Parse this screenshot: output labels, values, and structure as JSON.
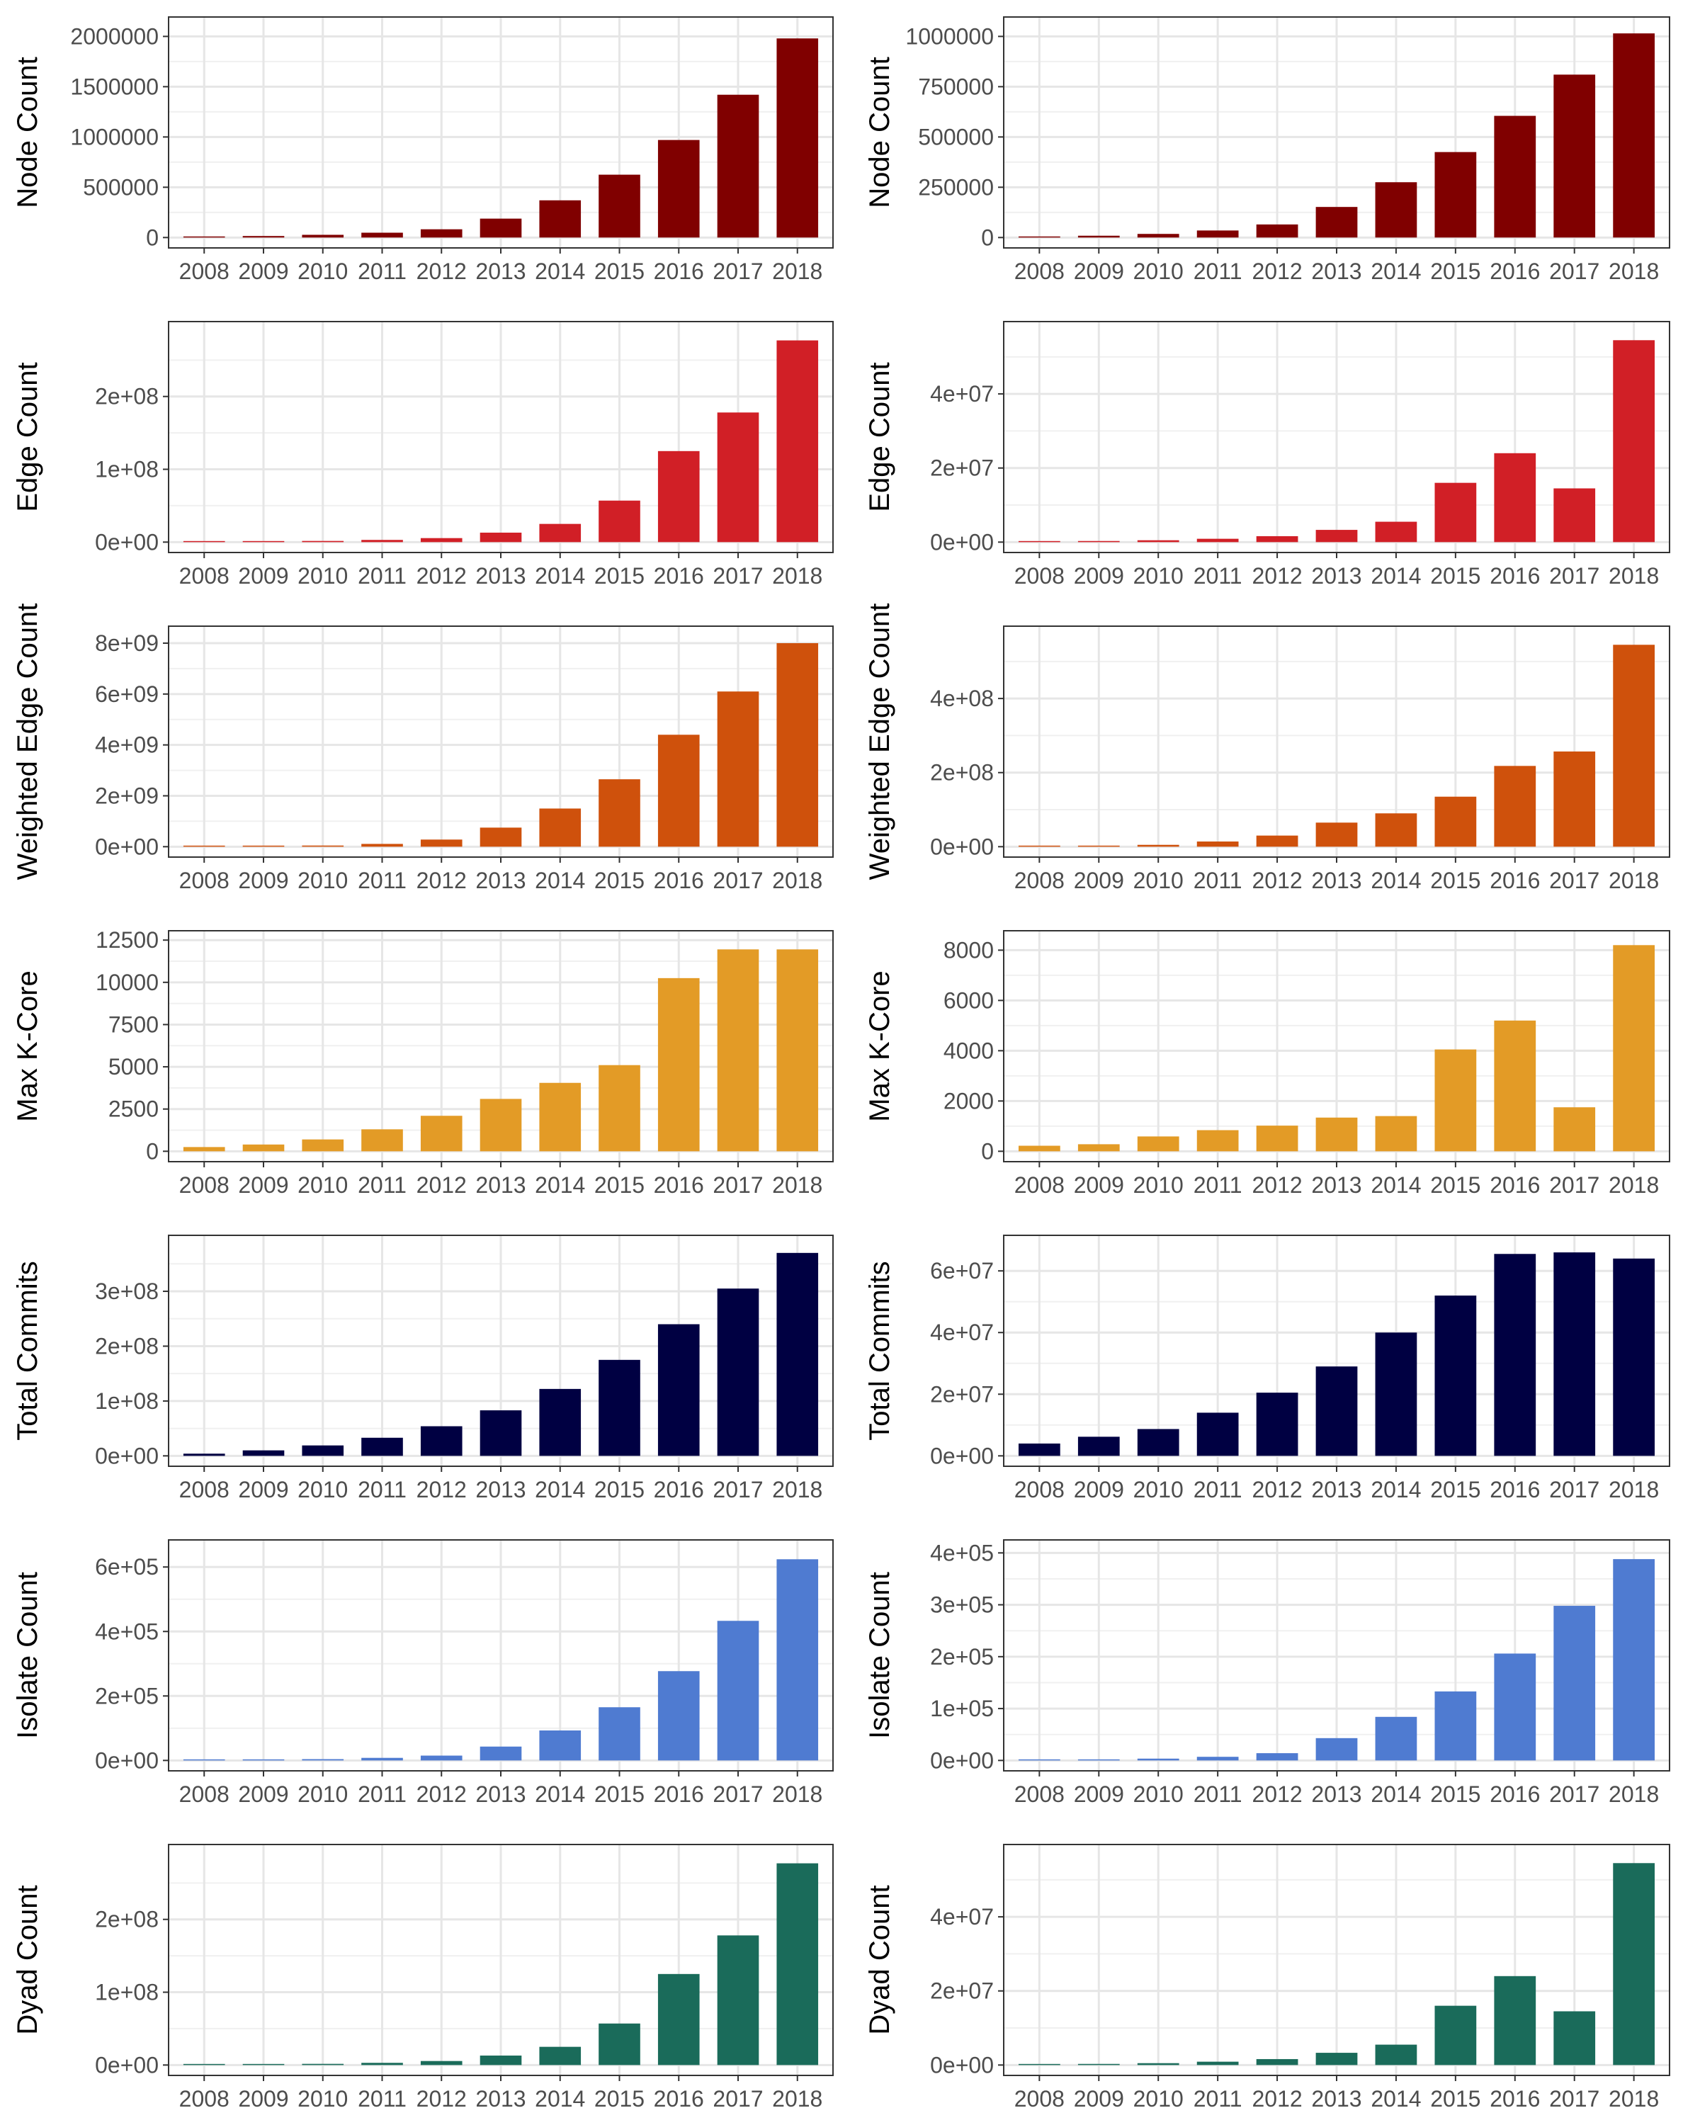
{
  "chart_data": [
    {
      "type": "bar",
      "categories": [
        "2008",
        "2009",
        "2010",
        "2011",
        "2012",
        "2013",
        "2014",
        "2015",
        "2016",
        "2017",
        "2018"
      ],
      "values": [
        8000,
        15000,
        27000,
        48000,
        82000,
        188000,
        370000,
        625000,
        970000,
        1420000,
        1980000
      ],
      "ylabel": "Node Count",
      "ylim": [
        0,
        2100000
      ],
      "y_ticks": [
        0,
        500000,
        1000000,
        1500000,
        2000000
      ],
      "y_tick_labels": [
        "0",
        "500000",
        "1000000",
        "1500000",
        "2000000"
      ],
      "color": "#800000",
      "grid": true
    },
    {
      "type": "bar",
      "categories": [
        "2008",
        "2009",
        "2010",
        "2011",
        "2012",
        "2013",
        "2014",
        "2015",
        "2016",
        "2017",
        "2018"
      ],
      "values": [
        4000,
        9000,
        18000,
        35000,
        65000,
        152000,
        275000,
        425000,
        605000,
        810000,
        1015000
      ],
      "ylabel": "Node Count",
      "ylim": [
        0,
        1050000
      ],
      "y_ticks": [
        0,
        250000,
        500000,
        750000,
        1000000
      ],
      "y_tick_labels": [
        "0",
        "250000",
        "500000",
        "750000",
        "1000000"
      ],
      "color": "#800000",
      "grid": true
    },
    {
      "type": "bar",
      "categories": [
        "2008",
        "2009",
        "2010",
        "2011",
        "2012",
        "2013",
        "2014",
        "2015",
        "2016",
        "2017",
        "2018"
      ],
      "values": [
        200000,
        700000,
        1600000,
        3000000,
        5500000,
        13000000,
        25000000,
        57000000,
        125000000,
        178000000,
        277000000
      ],
      "ylabel": "Edge Count",
      "ylim": [
        0,
        290000000
      ],
      "y_ticks": [
        0,
        100000000,
        200000000
      ],
      "y_tick_labels": [
        "0e+00",
        "1e+08",
        "2e+08"
      ],
      "color": "#d11f26",
      "grid": true
    },
    {
      "type": "bar",
      "categories": [
        "2008",
        "2009",
        "2010",
        "2011",
        "2012",
        "2013",
        "2014",
        "2015",
        "2016",
        "2017",
        "2018"
      ],
      "values": [
        100000,
        300000,
        500000,
        900000,
        1600000,
        3300000,
        5500000,
        16000000,
        24000000,
        14500000,
        54500000
      ],
      "ylabel": "Edge Count",
      "ylim": [
        0,
        57000000
      ],
      "y_ticks": [
        0,
        20000000,
        40000000
      ],
      "y_tick_labels": [
        "0e+00",
        "2e+07",
        "4e+07"
      ],
      "color": "#d11f26",
      "grid": true
    },
    {
      "type": "bar",
      "categories": [
        "2008",
        "2009",
        "2010",
        "2011",
        "2012",
        "2013",
        "2014",
        "2015",
        "2016",
        "2017",
        "2018"
      ],
      "values": [
        5000000,
        20000000,
        45000000,
        110000000,
        280000000,
        750000000,
        1500000000,
        2650000000,
        4400000000,
        6100000000,
        8000000000
      ],
      "ylabel": "Weighted Edge Count",
      "ylim": [
        0,
        8300000000
      ],
      "y_ticks": [
        0,
        2000000000,
        4000000000,
        6000000000,
        8000000000
      ],
      "y_tick_labels": [
        "0e+00",
        "2e+09",
        "4e+09",
        "6e+09",
        "8e+09"
      ],
      "color": "#cf510c",
      "grid": true
    },
    {
      "type": "bar",
      "categories": [
        "2008",
        "2009",
        "2010",
        "2011",
        "2012",
        "2013",
        "2014",
        "2015",
        "2016",
        "2017",
        "2018"
      ],
      "values": [
        1000000,
        2000000,
        5000000,
        14000000,
        30000000,
        65000000,
        90000000,
        135000000,
        218000000,
        257000000,
        545000000
      ],
      "ylabel": "Weighted Edge Count",
      "ylim": [
        0,
        570000000
      ],
      "y_ticks": [
        0,
        200000000,
        400000000
      ],
      "y_tick_labels": [
        "0e+00",
        "2e+08",
        "4e+08"
      ],
      "color": "#cf510c",
      "grid": true
    },
    {
      "type": "bar",
      "categories": [
        "2008",
        "2009",
        "2010",
        "2011",
        "2012",
        "2013",
        "2014",
        "2015",
        "2016",
        "2017",
        "2018"
      ],
      "values": [
        250,
        400,
        700,
        1300,
        2100,
        3100,
        4050,
        5100,
        10250,
        11950,
        11950
      ],
      "ylabel": "Max K-Core",
      "ylim": [
        0,
        12500
      ],
      "y_ticks": [
        0,
        2500,
        5000,
        7500,
        10000,
        12500
      ],
      "y_tick_labels": [
        "0",
        "2500",
        "5000",
        "7500",
        "10000",
        "12500"
      ],
      "color": "#e39b26",
      "grid": true
    },
    {
      "type": "bar",
      "categories": [
        "2008",
        "2009",
        "2010",
        "2011",
        "2012",
        "2013",
        "2014",
        "2015",
        "2016",
        "2017",
        "2018"
      ],
      "values": [
        220,
        280,
        590,
        840,
        1020,
        1340,
        1400,
        4050,
        5200,
        1750,
        8200
      ],
      "ylabel": "Max K-Core",
      "ylim": [
        0,
        8400
      ],
      "y_ticks": [
        0,
        2000,
        4000,
        6000,
        8000
      ],
      "y_tick_labels": [
        "0",
        "2000",
        "4000",
        "6000",
        "8000"
      ],
      "color": "#e39b26",
      "grid": true
    },
    {
      "type": "bar",
      "categories": [
        "2008",
        "2009",
        "2010",
        "2011",
        "2012",
        "2013",
        "2014",
        "2015",
        "2016",
        "2017",
        "2018"
      ],
      "values": [
        4000000,
        10000000,
        19000000,
        33000000,
        54000000,
        83000000,
        122000000,
        175000000,
        240000000,
        305000000,
        370000000
      ],
      "ylabel": "Total Commits",
      "ylim": [
        0,
        385000000
      ],
      "y_ticks": [
        0,
        100000000,
        200000000,
        300000000
      ],
      "y_tick_labels": [
        "0e+00",
        "1e+08",
        "2e+08",
        "3e+08"
      ],
      "color": "#000042",
      "grid": true
    },
    {
      "type": "bar",
      "categories": [
        "2008",
        "2009",
        "2010",
        "2011",
        "2012",
        "2013",
        "2014",
        "2015",
        "2016",
        "2017",
        "2018"
      ],
      "values": [
        4000000,
        6200000,
        8700000,
        14000000,
        20500000,
        29000000,
        40000000,
        52000000,
        65500000,
        66000000,
        64000000
      ],
      "ylabel": "Total Commits",
      "ylim": [
        0,
        68500000
      ],
      "y_ticks": [
        0,
        20000000,
        40000000,
        60000000
      ],
      "y_tick_labels": [
        "0e+00",
        "2e+07",
        "4e+07",
        "6e+07"
      ],
      "color": "#000042",
      "grid": true
    },
    {
      "type": "bar",
      "categories": [
        "2008",
        "2009",
        "2010",
        "2011",
        "2012",
        "2013",
        "2014",
        "2015",
        "2016",
        "2017",
        "2018"
      ],
      "values": [
        1000,
        2000,
        4000,
        8000,
        15000,
        43000,
        93000,
        165000,
        277000,
        433000,
        624000
      ],
      "ylabel": "Isolate Count",
      "ylim": [
        0,
        655000
      ],
      "y_ticks": [
        0,
        200000,
        400000,
        600000
      ],
      "y_tick_labels": [
        "0e+00",
        "2e+05",
        "4e+05",
        "6e+05"
      ],
      "color": "#4f7bd1",
      "grid": true
    },
    {
      "type": "bar",
      "categories": [
        "2008",
        "2009",
        "2010",
        "2011",
        "2012",
        "2013",
        "2014",
        "2015",
        "2016",
        "2017",
        "2018"
      ],
      "values": [
        500,
        1500,
        3500,
        7000,
        14000,
        43000,
        84000,
        133000,
        206000,
        298000,
        388000
      ],
      "ylabel": "Isolate Count",
      "ylim": [
        0,
        407000
      ],
      "y_ticks": [
        0,
        100000,
        200000,
        300000,
        400000
      ],
      "y_tick_labels": [
        "0e+00",
        "1e+05",
        "2e+05",
        "3e+05",
        "4e+05"
      ],
      "color": "#4f7bd1",
      "grid": true
    },
    {
      "type": "bar",
      "categories": [
        "2008",
        "2009",
        "2010",
        "2011",
        "2012",
        "2013",
        "2014",
        "2015",
        "2016",
        "2017",
        "2018"
      ],
      "values": [
        200000,
        700000,
        1600000,
        3000000,
        5500000,
        13000000,
        25000000,
        57000000,
        125000000,
        178000000,
        277000000
      ],
      "ylabel": "Dyad Count",
      "ylim": [
        0,
        290000000
      ],
      "y_ticks": [
        0,
        100000000,
        200000000
      ],
      "y_tick_labels": [
        "0e+00",
        "1e+08",
        "2e+08"
      ],
      "color": "#1a6b5a",
      "grid": true
    },
    {
      "type": "bar",
      "categories": [
        "2008",
        "2009",
        "2010",
        "2011",
        "2012",
        "2013",
        "2014",
        "2015",
        "2016",
        "2017",
        "2018"
      ],
      "values": [
        100000,
        300000,
        500000,
        900000,
        1600000,
        3300000,
        5500000,
        16000000,
        24000000,
        14500000,
        54500000
      ],
      "ylabel": "Dyad Count",
      "ylim": [
        0,
        57000000
      ],
      "y_ticks": [
        0,
        20000000,
        40000000
      ],
      "y_tick_labels": [
        "0e+00",
        "2e+07",
        "4e+07"
      ],
      "color": "#1a6b5a",
      "grid": true
    }
  ]
}
